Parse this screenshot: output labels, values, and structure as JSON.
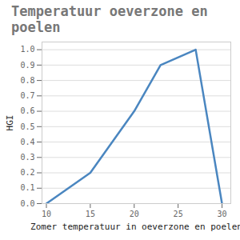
{
  "chart_data": {
    "type": "line",
    "title": "Temperatuur oeverzone en poelen",
    "x_label": "Zomer temperatuur in oeverzone en poelen",
    "y_label": "HGI",
    "x": [
      10,
      15,
      20,
      23,
      27,
      30
    ],
    "values": [
      0,
      0.2,
      0.6,
      0.9,
      1.0,
      0
    ],
    "color": "#4a86c0",
    "xlim": [
      9.5,
      31
    ],
    "xticks": [
      10,
      15,
      20,
      25,
      30
    ],
    "ylim": [
      0,
      1.05
    ],
    "yticks": [
      {
        "value": 0,
        "label": "0.0"
      },
      0.1,
      0.2,
      0.3,
      0.4,
      0.5,
      0.6,
      0.7,
      0.8,
      0.9,
      {
        "value": 1,
        "label": "1.0"
      }
    ],
    "grid": true
  }
}
